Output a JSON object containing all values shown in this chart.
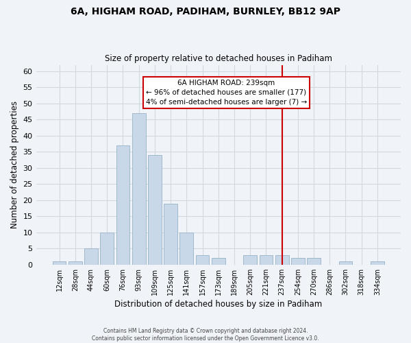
{
  "title": "6A, HIGHAM ROAD, PADIHAM, BURNLEY, BB12 9AP",
  "subtitle": "Size of property relative to detached houses in Padiham",
  "xlabel": "Distribution of detached houses by size in Padiham",
  "ylabel": "Number of detached properties",
  "bin_labels": [
    "12sqm",
    "28sqm",
    "44sqm",
    "60sqm",
    "76sqm",
    "93sqm",
    "109sqm",
    "125sqm",
    "141sqm",
    "157sqm",
    "173sqm",
    "189sqm",
    "205sqm",
    "221sqm",
    "237sqm",
    "254sqm",
    "270sqm",
    "286sqm",
    "302sqm",
    "318sqm",
    "334sqm"
  ],
  "bar_heights": [
    1,
    1,
    5,
    10,
    37,
    47,
    34,
    19,
    10,
    3,
    2,
    0,
    3,
    3,
    3,
    2,
    2,
    0,
    1,
    0,
    1
  ],
  "bar_color": "#c8d8e8",
  "bar_edge_color": "#a0b8cc",
  "grid_color": "#d0d8e0",
  "vline_x_index": 14,
  "vline_color": "#cc0000",
  "annotation_title": "6A HIGHAM ROAD: 239sqm",
  "annotation_line1": "← 96% of detached houses are smaller (177)",
  "annotation_line2": "4% of semi-detached houses are larger (7) →",
  "annotation_box_color": "#ffffff",
  "annotation_box_edge": "#cc0000",
  "ylim": [
    0,
    62
  ],
  "yticks": [
    0,
    5,
    10,
    15,
    20,
    25,
    30,
    35,
    40,
    45,
    50,
    55,
    60
  ],
  "footer1": "Contains HM Land Registry data © Crown copyright and database right 2024.",
  "footer2": "Contains public sector information licensed under the Open Government Licence v3.0.",
  "bg_color": "#f0f4f8"
}
